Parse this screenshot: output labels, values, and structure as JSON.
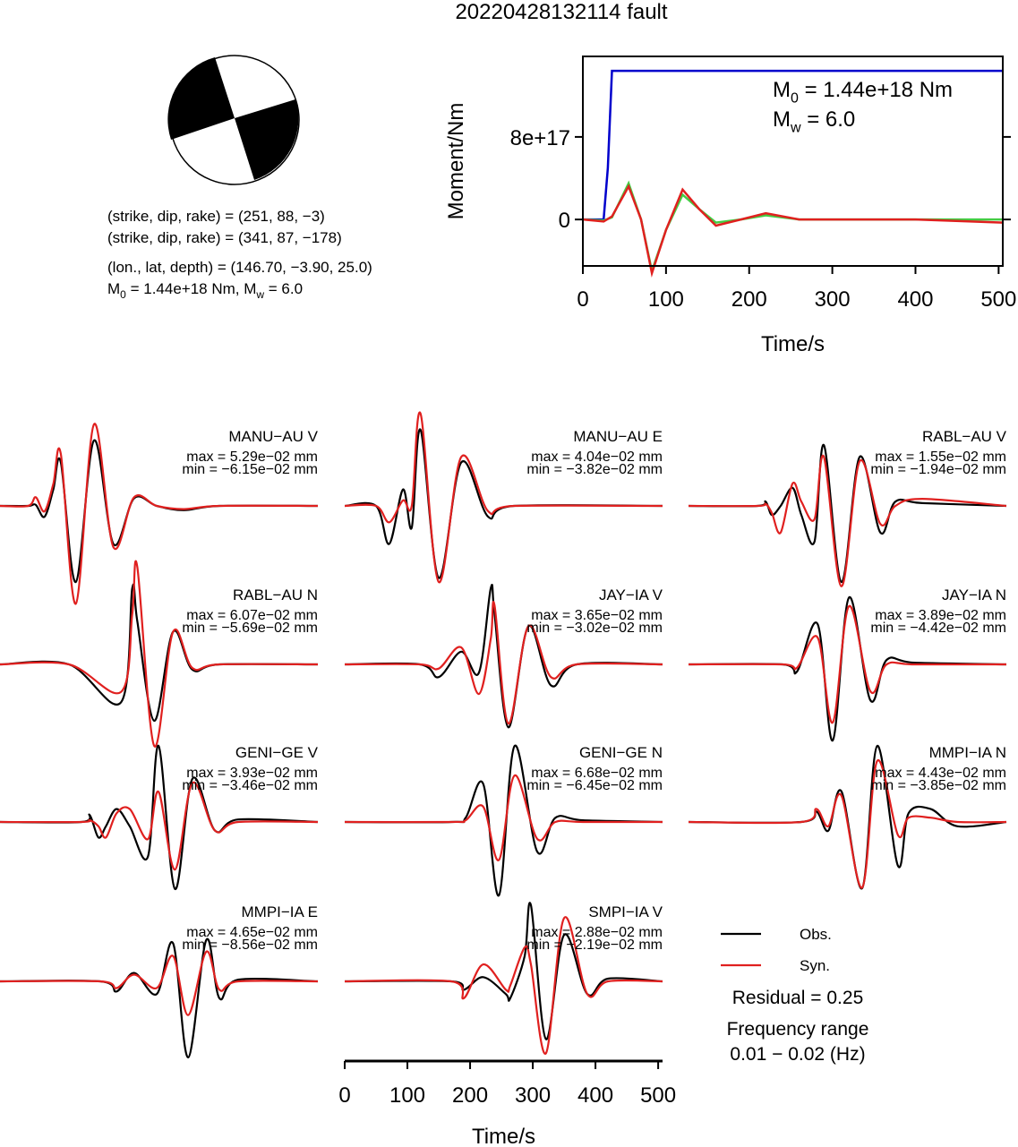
{
  "title": "20220428132114 fault",
  "focal_mechanism": {
    "lines": [
      "(strike, dip, rake) = (251, 88, −3)",
      "(strike, dip, rake) = (341, 87, −178)",
      "(lon., lat, depth) = (146.70, −3.90, 25.0)"
    ],
    "moment_line": [
      "M",
      "0",
      " = 1.44e+18 Nm, M",
      "w",
      " = 6.0"
    ]
  },
  "chart_data": [
    {
      "type": "line",
      "ylabel": "Moment/Nm",
      "xlabel": "Time/s",
      "xlim": [
        0,
        505
      ],
      "ylim": [
        -4.5e+17,
        1.58e+18
      ],
      "xticks": [
        0,
        100,
        200,
        300,
        400,
        500
      ],
      "yticks": [
        0,
        {
          "value": 8e+17,
          "label": "8e+17"
        }
      ],
      "annotations": [
        [
          "M",
          "0",
          " = 1.44e+18 Nm"
        ],
        [
          "M",
          "w",
          " = 6.0"
        ]
      ],
      "series": [
        {
          "color": "#0000cc",
          "x": [
            0,
            25,
            30,
            35,
            505
          ],
          "values": [
            0,
            0,
            5e+17,
            1.44e+18,
            1.44e+18
          ]
        },
        {
          "color": "#44cc44",
          "x": [
            0,
            25,
            35,
            55,
            70,
            83,
            100,
            120,
            140,
            160,
            190,
            220,
            260,
            300,
            400,
            505
          ],
          "values": [
            0,
            -1e+16,
            2e+16,
            3.5e+17,
            0,
            -5e+17,
            -1e+17,
            2.4e+17,
            1e+17,
            -3e+16,
            0,
            4e+16,
            0,
            0,
            0,
            0
          ]
        },
        {
          "color": "#e0201f",
          "x": [
            0,
            25,
            35,
            55,
            70,
            83,
            100,
            120,
            140,
            160,
            190,
            220,
            260,
            300,
            400,
            505
          ],
          "values": [
            0,
            -2e+16,
            3e+16,
            3.2e+17,
            0,
            -5.2e+17,
            -1e+17,
            2.9e+17,
            1e+17,
            -6e+16,
            0,
            6e+16,
            0,
            0,
            0,
            -3e+16
          ]
        }
      ]
    },
    {
      "type": "waveforms",
      "xlabel": "Time/s",
      "xlim": [
        0,
        507
      ],
      "xticks": [
        0,
        100,
        200,
        300,
        400,
        500
      ],
      "series_style": [
        {
          "name": "Obs.",
          "color": "#000000"
        },
        {
          "name": "Syn.",
          "color": "#e0201f"
        }
      ],
      "residual": "Residual = 0.25",
      "frequency_title": "Frequency range",
      "frequency_range": "0.01 − 0.02 (Hz)",
      "panels": [
        {
          "station": "MANU−AU V",
          "max": "max = 5.29e−02 mm",
          "min": "min = −6.15e−02 mm",
          "x": [
            0,
            45,
            57,
            71,
            85,
            97,
            121,
            150,
            181,
            214,
            250,
            293,
            350,
            507
          ],
          "values": [
            [
              0,
              0,
              0.0009,
              -0.0088,
              0.0132,
              0.0352,
              -0.0615,
              0.0529,
              -0.0308,
              0.0062,
              0,
              -0.0035,
              0,
              0
            ],
            [
              0,
              0,
              0.007,
              -0.0044,
              0.0176,
              0.0422,
              -0.0791,
              0.066,
              -0.0334,
              0.007,
              0,
              -0.0026,
              0,
              0
            ]
          ]
        },
        {
          "station": "MANU−AU E",
          "max": "max = 4.04e−02 mm",
          "min": "min = −3.82e−02 mm",
          "x": [
            0,
            50,
            71,
            93,
            107,
            121,
            150,
            186,
            229,
            270,
            507
          ],
          "values": [
            [
              0,
              0,
              -0.0202,
              0.0087,
              -0.0115,
              0.0404,
              -0.0382,
              0.0231,
              -0.0058,
              0,
              0
            ],
            [
              0,
              0,
              -0.0087,
              0.0029,
              0,
              0.049,
              -0.0404,
              0.026,
              -0.0029,
              0,
              0
            ]
          ]
        },
        {
          "station": "RABL−AU V",
          "max": "max = 1.55e−02 mm",
          "min": "min = −1.94e−02 mm",
          "x": [
            0,
            110,
            123,
            133,
            147,
            166,
            180,
            201,
            216,
            244,
            273,
            306,
            330,
            373,
            507
          ],
          "values": [
            [
              0,
              0,
              0.0011,
              -0.0023,
              0,
              0.0046,
              -0.0023,
              -0.0091,
              0.0155,
              -0.0194,
              0.0125,
              -0.0068,
              0.0011,
              0.0007,
              0
            ],
            [
              0,
              0,
              0.0005,
              -0.0018,
              -0.0068,
              0.0057,
              0.0011,
              -0.0034,
              0.0125,
              -0.0205,
              0.0114,
              -0.0046,
              0,
              0.0018,
              0
            ]
          ]
        },
        {
          "station": "RABL−AU N",
          "max": "max = 6.07e−02 mm",
          "min": "min = −5.69e−02 mm",
          "x": [
            0,
            110,
            193,
            211,
            219,
            246,
            276,
            307,
            350,
            507
          ],
          "values": [
            [
              0,
              0,
              -0.0303,
              0.0607,
              0.0347,
              -0.045,
              0.026,
              -0.0043,
              0,
              0
            ],
            [
              0,
              0,
              -0.022,
              0.04,
              0.078,
              -0.065,
              0.026,
              -0.003,
              0,
              0
            ]
          ]
        },
        {
          "station": "JAY−IA V",
          "max": "max = 3.65e−02 mm",
          "min": "min = −3.02e−02 mm",
          "x": [
            0,
            120,
            150,
            186,
            214,
            233,
            239,
            261,
            293,
            329,
            370,
            507
          ],
          "values": [
            [
              0,
              0,
              -0.0061,
              0.0061,
              -0.0041,
              0.0365,
              0.0244,
              -0.0302,
              0.0183,
              -0.0101,
              0,
              0
            ],
            [
              0,
              0,
              -0.002,
              0.0081,
              -0.0142,
              0.0122,
              0.0284,
              -0.0284,
              0.0183,
              -0.0061,
              0,
              0
            ]
          ]
        },
        {
          "station": "JAY−IA N",
          "max": "max = 3.89e−02 mm",
          "min": "min = −4.42e−02 mm",
          "x": [
            0,
            150,
            173,
            206,
            230,
            256,
            290,
            316,
            360,
            507
          ],
          "values": [
            [
              0,
              0,
              -0.0042,
              0.0234,
              -0.0442,
              0.0389,
              -0.0208,
              0.0026,
              0.001,
              0
            ],
            [
              0,
              0,
              -0.002,
              0.0156,
              -0.0338,
              0.0338,
              -0.0156,
              0,
              0,
              0
            ]
          ]
        },
        {
          "station": "GENI−GE V",
          "max": "max = 3.93e−02 mm",
          "min": "min = −3.46e−02 mm",
          "x": [
            0,
            130,
            143,
            157,
            169,
            186,
            207,
            236,
            253,
            279,
            307,
            343,
            380,
            507
          ],
          "values": [
            [
              0,
              0,
              0.0036,
              -0.008,
              -0.0022,
              0.0067,
              -0.0022,
              -0.0179,
              0.0393,
              -0.0346,
              0.0224,
              -0.0045,
              0.0013,
              0
            ],
            [
              0,
              0,
              0.0009,
              -0.0022,
              -0.008,
              0.0045,
              0.0067,
              -0.0089,
              0.0156,
              -0.0246,
              0.0201,
              -0.0045,
              0,
              0
            ]
          ]
        },
        {
          "station": "GENI−GE N",
          "max": "max = 6.68e−02 mm",
          "min": "min = −6.45e−02 mm",
          "x": [
            0,
            170,
            193,
            221,
            246,
            271,
            307,
            336,
            380,
            507
          ],
          "values": [
            [
              0,
              0,
              0.0037,
              0.0334,
              -0.0645,
              0.0668,
              -0.026,
              0.0037,
              0.0015,
              0
            ],
            [
              0,
              0,
              0.0015,
              0.0134,
              -0.0334,
              0.0408,
              -0.0148,
              0,
              0,
              0
            ]
          ]
        },
        {
          "station": "MMPI−IA N",
          "max": "max = 4.43e−02 mm",
          "min": "min = −3.85e−02 mm",
          "x": [
            0,
            180,
            204,
            223,
            244,
            277,
            301,
            334,
            351,
            386,
            429,
            507
          ],
          "values": [
            [
              0,
              0,
              0.0061,
              -0.0051,
              0.0178,
              -0.0385,
              0.0443,
              -0.0255,
              0.0051,
              0.0076,
              -0.0025,
              0
            ],
            [
              0,
              0,
              0.0076,
              -0.0025,
              0.0153,
              -0.0382,
              0.0356,
              -0.0076,
              0.0025,
              0.0025,
              0,
              0
            ]
          ]
        },
        {
          "station": "MMPI−IA E",
          "max": "max = 4.65e−02 mm",
          "min": "min = −8.56e−02 mm",
          "x": [
            0,
            160,
            186,
            214,
            250,
            276,
            300,
            329,
            350,
            380,
            507
          ],
          "values": [
            [
              0,
              0,
              -0.0114,
              0.0095,
              -0.0143,
              0.0428,
              -0.0856,
              0.0465,
              -0.019,
              0.0019,
              0
            ],
            [
              0,
              0,
              -0.0076,
              0.0076,
              -0.0076,
              0.0285,
              -0.038,
              0.0333,
              -0.0095,
              0,
              0
            ]
          ]
        },
        {
          "station": "SMPI−IA V",
          "max": "max = 2.88e−02 mm",
          "min": "min = −2.19e−02 mm",
          "x": [
            0,
            170,
            190,
            221,
            257,
            264,
            287,
            297,
            321,
            350,
            387,
            420,
            507
          ],
          "values": [
            [
              0,
              0,
              -0.0032,
              0.0016,
              -0.0048,
              -0.0064,
              0.0096,
              0.0288,
              -0.0219,
              0.0176,
              -0.0048,
              0.001,
              0
            ],
            [
              0,
              0,
              -0.0064,
              0.0064,
              -0.0032,
              -0.0016,
              0.0128,
              0.0064,
              -0.0272,
              0.024,
              -0.0048,
              0,
              0
            ]
          ]
        }
      ]
    }
  ]
}
